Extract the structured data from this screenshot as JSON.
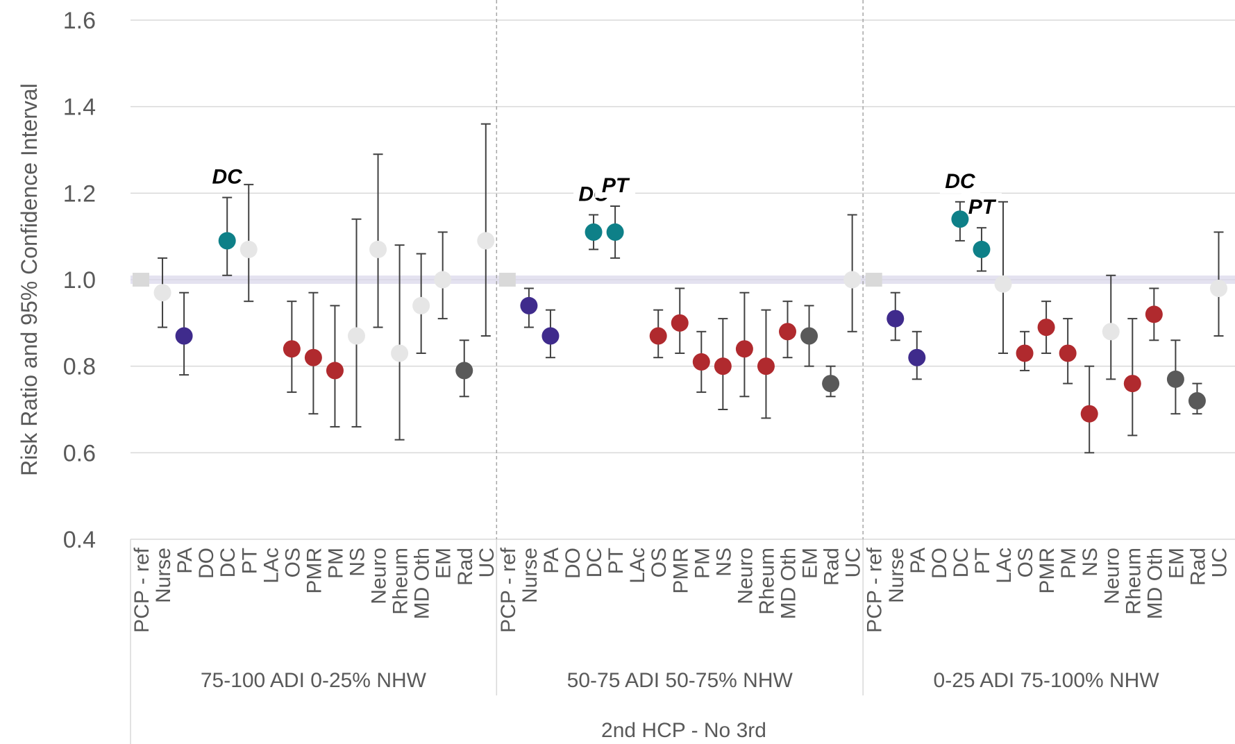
{
  "chart_data": {
    "type": "scatter",
    "title": "",
    "ylabel": "Risk Ratio and 95% Confidence Interval",
    "xlabel": "2nd HCP - No 3rd",
    "ylim": [
      0.4,
      1.6
    ],
    "yticks": [
      "0.4",
      "0.6",
      "0.8",
      "1.0",
      "1.2",
      "1.4",
      "1.6"
    ],
    "grid": true,
    "reference_line": 1.0,
    "colors": {
      "reference": "#d9d9d9",
      "nurse_pa": "#3f2b8c",
      "dc_pt": "#0e8088",
      "specialist": "#b02a2e",
      "em_rad": "#595959",
      "nonsig": "#e6e6e6",
      "errorbar": "#404040",
      "refline": "#d9d6ea"
    },
    "groups": [
      {
        "label": "75-100 ADI   0-25% NHW",
        "annotations": [
          "DC"
        ],
        "points": [
          {
            "cat": "PCP - ref",
            "y": 1.0,
            "cls": "reference"
          },
          {
            "cat": "Nurse",
            "y": 0.97,
            "lo": 0.89,
            "hi": 1.05,
            "cls": "nonsig"
          },
          {
            "cat": "PA",
            "y": 0.87,
            "lo": 0.78,
            "hi": 0.97,
            "cls": "nurse_pa"
          },
          {
            "cat": "DO"
          },
          {
            "cat": "DC",
            "y": 1.09,
            "lo": 1.01,
            "hi": 1.19,
            "cls": "dc_pt"
          },
          {
            "cat": "PT",
            "y": 1.07,
            "lo": 0.95,
            "hi": 1.22,
            "cls": "nonsig"
          },
          {
            "cat": "LAc"
          },
          {
            "cat": "OS",
            "y": 0.84,
            "lo": 0.74,
            "hi": 0.95,
            "cls": "specialist"
          },
          {
            "cat": "PMR",
            "y": 0.82,
            "lo": 0.69,
            "hi": 0.97,
            "cls": "specialist"
          },
          {
            "cat": "PM",
            "y": 0.79,
            "lo": 0.66,
            "hi": 0.94,
            "cls": "specialist"
          },
          {
            "cat": "NS",
            "y": 0.87,
            "lo": 0.66,
            "hi": 1.14,
            "cls": "nonsig"
          },
          {
            "cat": "Neuro",
            "y": 1.07,
            "lo": 0.89,
            "hi": 1.29,
            "cls": "nonsig"
          },
          {
            "cat": "Rheum",
            "y": 0.83,
            "lo": 0.63,
            "hi": 1.08,
            "cls": "nonsig"
          },
          {
            "cat": "MD Oth",
            "y": 0.94,
            "lo": 0.83,
            "hi": 1.06,
            "cls": "nonsig"
          },
          {
            "cat": "EM",
            "y": 1.0,
            "lo": 0.91,
            "hi": 1.11,
            "cls": "nonsig"
          },
          {
            "cat": "Rad",
            "y": 0.79,
            "lo": 0.73,
            "hi": 0.86,
            "cls": "em_rad"
          },
          {
            "cat": "UC",
            "y": 1.09,
            "lo": 0.87,
            "hi": 1.36,
            "cls": "nonsig"
          }
        ]
      },
      {
        "label": "50-75 ADI   50-75% NHW",
        "annotations": [
          "DC",
          "PT"
        ],
        "points": [
          {
            "cat": "PCP - ref",
            "y": 1.0,
            "cls": "reference"
          },
          {
            "cat": "Nurse",
            "y": 0.94,
            "lo": 0.89,
            "hi": 0.98,
            "cls": "nurse_pa"
          },
          {
            "cat": "PA",
            "y": 0.87,
            "lo": 0.82,
            "hi": 0.93,
            "cls": "nurse_pa"
          },
          {
            "cat": "DO"
          },
          {
            "cat": "DC",
            "y": 1.11,
            "lo": 1.07,
            "hi": 1.15,
            "cls": "dc_pt"
          },
          {
            "cat": "PT",
            "y": 1.11,
            "lo": 1.05,
            "hi": 1.17,
            "cls": "dc_pt"
          },
          {
            "cat": "LAc"
          },
          {
            "cat": "OS",
            "y": 0.87,
            "lo": 0.82,
            "hi": 0.93,
            "cls": "specialist"
          },
          {
            "cat": "PMR",
            "y": 0.9,
            "lo": 0.83,
            "hi": 0.98,
            "cls": "specialist"
          },
          {
            "cat": "PM",
            "y": 0.81,
            "lo": 0.74,
            "hi": 0.88,
            "cls": "specialist"
          },
          {
            "cat": "NS",
            "y": 0.8,
            "lo": 0.7,
            "hi": 0.91,
            "cls": "specialist"
          },
          {
            "cat": "Neuro",
            "y": 0.84,
            "lo": 0.73,
            "hi": 0.97,
            "cls": "specialist"
          },
          {
            "cat": "Rheum",
            "y": 0.8,
            "lo": 0.68,
            "hi": 0.93,
            "cls": "specialist"
          },
          {
            "cat": "MD Oth",
            "y": 0.88,
            "lo": 0.82,
            "hi": 0.95,
            "cls": "specialist"
          },
          {
            "cat": "EM",
            "y": 0.87,
            "lo": 0.8,
            "hi": 0.94,
            "cls": "em_rad"
          },
          {
            "cat": "Rad",
            "y": 0.76,
            "lo": 0.73,
            "hi": 0.8,
            "cls": "em_rad"
          },
          {
            "cat": "UC",
            "y": 1.0,
            "lo": 0.88,
            "hi": 1.15,
            "cls": "nonsig"
          }
        ]
      },
      {
        "label": "0-25 ADI   75-100% NHW",
        "annotations": [
          "DC",
          "PT"
        ],
        "points": [
          {
            "cat": "PCP - ref",
            "y": 1.0,
            "cls": "reference"
          },
          {
            "cat": "Nurse",
            "y": 0.91,
            "lo": 0.86,
            "hi": 0.97,
            "cls": "nurse_pa"
          },
          {
            "cat": "PA",
            "y": 0.82,
            "lo": 0.77,
            "hi": 0.88,
            "cls": "nurse_pa"
          },
          {
            "cat": "DO"
          },
          {
            "cat": "DC",
            "y": 1.14,
            "lo": 1.09,
            "hi": 1.18,
            "cls": "dc_pt"
          },
          {
            "cat": "PT",
            "y": 1.07,
            "lo": 1.02,
            "hi": 1.12,
            "cls": "dc_pt"
          },
          {
            "cat": "LAc",
            "y": 0.99,
            "lo": 0.83,
            "hi": 1.18,
            "cls": "nonsig"
          },
          {
            "cat": "OS",
            "y": 0.83,
            "lo": 0.79,
            "hi": 0.88,
            "cls": "specialist"
          },
          {
            "cat": "PMR",
            "y": 0.89,
            "lo": 0.83,
            "hi": 0.95,
            "cls": "specialist"
          },
          {
            "cat": "PM",
            "y": 0.83,
            "lo": 0.76,
            "hi": 0.91,
            "cls": "specialist"
          },
          {
            "cat": "NS",
            "y": 0.69,
            "lo": 0.6,
            "hi": 0.8,
            "cls": "specialist"
          },
          {
            "cat": "Neuro",
            "y": 0.88,
            "lo": 0.77,
            "hi": 1.01,
            "cls": "nonsig"
          },
          {
            "cat": "Rheum",
            "y": 0.76,
            "lo": 0.64,
            "hi": 0.91,
            "cls": "specialist"
          },
          {
            "cat": "MD Oth",
            "y": 0.92,
            "lo": 0.86,
            "hi": 0.98,
            "cls": "specialist"
          },
          {
            "cat": "EM",
            "y": 0.77,
            "lo": 0.69,
            "hi": 0.86,
            "cls": "em_rad"
          },
          {
            "cat": "Rad",
            "y": 0.72,
            "lo": 0.69,
            "hi": 0.76,
            "cls": "em_rad"
          },
          {
            "cat": "UC",
            "y": 0.98,
            "lo": 0.87,
            "hi": 1.11,
            "cls": "nonsig"
          }
        ]
      }
    ]
  }
}
